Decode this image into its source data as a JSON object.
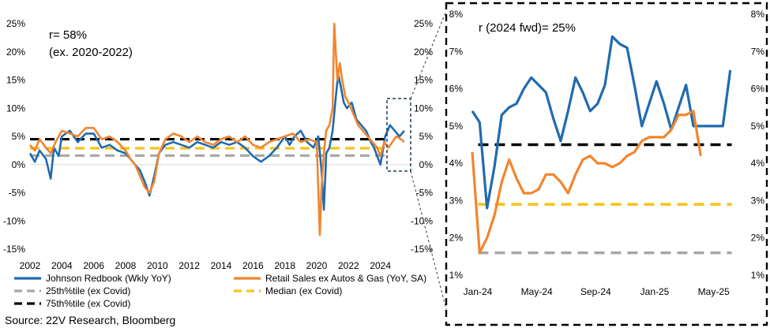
{
  "source": "Source: 22V Research, Bloomberg",
  "colors": {
    "redbook": "#1f6bb0",
    "retail": "#f2852e",
    "p25": "#a6a6a6",
    "median": "#f7c21b",
    "p75": "#000000"
  },
  "chart_data": [
    {
      "type": "line",
      "correlation_label": "r=   58%",
      "correlation_note": "(ex. 2020-2022)",
      "xlim": [
        2002,
        2025.9
      ],
      "x_ticks": [
        "2002",
        "2004",
        "2006",
        "2008",
        "2010",
        "2012",
        "2014",
        "2016",
        "2018",
        "2020",
        "2022",
        "2024"
      ],
      "ylim": [
        -15,
        25
      ],
      "y_ticks_left": [
        "25%",
        "20%",
        "15%",
        "10%",
        "5%",
        "0%",
        "-5%",
        "-10%",
        "-15%"
      ],
      "y_ticks_right": [
        "25%",
        "20%",
        "15%",
        "10%",
        "5%",
        "0%",
        "-5%",
        "-10%",
        "-15%"
      ],
      "series": [
        {
          "name": "Johnson Redbook (Wkly YoY)",
          "style": "solid",
          "x": [
            2002,
            2002.3,
            2002.6,
            2003,
            2003.3,
            2003.5,
            2003.8,
            2004,
            2004.5,
            2005,
            2005.5,
            2006,
            2006.5,
            2007,
            2007.5,
            2008,
            2008.3,
            2008.6,
            2008.9,
            2009.2,
            2009.5,
            2009.8,
            2010.1,
            2010.5,
            2011,
            2011.5,
            2012,
            2012.5,
            2013,
            2013.5,
            2014,
            2014.5,
            2015,
            2015.5,
            2016,
            2016.5,
            2017,
            2017.5,
            2018,
            2018.3,
            2018.6,
            2019,
            2019.4,
            2019.8,
            2020.1,
            2020.3,
            2020.45,
            2020.6,
            2020.8,
            2021.0,
            2021.2,
            2021.35,
            2021.5,
            2021.7,
            2021.9,
            2022.2,
            2022.5,
            2022.8,
            2023.1,
            2023.4,
            2023.6,
            2023.8,
            2024.0,
            2024.3,
            2024.6,
            2024.9,
            2025.2,
            2025.5
          ],
          "y": [
            2,
            0.5,
            2.5,
            1,
            -2.5,
            3,
            1.5,
            5,
            6,
            4,
            5.5,
            5.5,
            3,
            3.5,
            2.5,
            2,
            1,
            0,
            -1,
            -3,
            -5.5,
            -2,
            2,
            3.5,
            4,
            3.5,
            3,
            4,
            3.5,
            3,
            4,
            3.5,
            4,
            3,
            1.5,
            0.5,
            1.5,
            3,
            5,
            3.5,
            5,
            6,
            4,
            3,
            5,
            -1,
            -8,
            2,
            3,
            6,
            12,
            16,
            14,
            11,
            10,
            11,
            8,
            7,
            6,
            4,
            3,
            1.5,
            0,
            5,
            7,
            6,
            5,
            6
          ]
        },
        {
          "name": "Retail Sales ex Autos & Gas (YoY, SA)",
          "style": "solid",
          "x": [
            2002,
            2002.3,
            2002.6,
            2003,
            2003.3,
            2003.6,
            2004,
            2004.5,
            2005,
            2005.5,
            2006,
            2006.5,
            2007,
            2007.5,
            2008,
            2008.3,
            2008.6,
            2008.9,
            2009.2,
            2009.5,
            2009.8,
            2010.1,
            2010.5,
            2011,
            2011.5,
            2012,
            2012.5,
            2013,
            2013.5,
            2014,
            2014.5,
            2015,
            2015.5,
            2016,
            2016.5,
            2017,
            2017.5,
            2018,
            2018.5,
            2019,
            2019.5,
            2020.0,
            2020.2,
            2020.3,
            2020.45,
            2020.6,
            2020.8,
            2021.0,
            2021.1,
            2021.2,
            2021.3,
            2021.45,
            2021.6,
            2021.8,
            2022.0,
            2022.3,
            2022.6,
            2022.9,
            2023.2,
            2023.5,
            2023.8,
            2024.0,
            2024.25,
            2024.5,
            2024.75,
            2025.0,
            2025.3,
            2025.5
          ],
          "y": [
            3.5,
            2.5,
            4.5,
            3,
            2,
            4,
            6,
            5.5,
            5,
            6.5,
            6.5,
            4.5,
            5,
            4,
            2.5,
            1,
            0,
            -2,
            -4,
            -5,
            -3,
            2,
            4.5,
            5.5,
            5,
            4,
            5,
            4,
            3.5,
            4.5,
            5,
            4,
            5,
            3.5,
            3,
            4,
            4.5,
            5,
            5.5,
            4,
            4.5,
            4,
            -12.5,
            -4,
            2,
            6,
            7,
            10,
            25,
            20,
            15,
            18,
            15,
            12,
            11,
            9,
            7,
            6,
            5,
            4,
            3,
            1.5,
            4,
            3,
            4,
            5,
            4.5,
            4
          ]
        },
        {
          "name": "25th%tile (ex Covid)",
          "style": "dashed",
          "level": 1.6
        },
        {
          "name": "Median (ex Covid)",
          "style": "dashed",
          "level": 2.9
        },
        {
          "name": "75th%tile (ex Covid)",
          "style": "dashed",
          "level": 4.5
        }
      ]
    },
    {
      "type": "line",
      "correlation_label": "r (2024 fwd)= 25%",
      "ylim": [
        1,
        8
      ],
      "y_ticks_left": [
        "8%",
        "7%",
        "6%",
        "5%",
        "4%",
        "3%",
        "2%",
        "1%"
      ],
      "y_ticks_right": [
        "8%",
        "7%",
        "6%",
        "5%",
        "4%",
        "3%",
        "2%",
        "1%"
      ],
      "x_ticks": [
        "Jan-24",
        "May-24",
        "Sep-24",
        "Jan-25",
        "May-25"
      ],
      "series": [
        {
          "name": "Johnson Redbook (Wkly YoY)",
          "style": "solid",
          "x": [
            0,
            0.5,
            1,
            1.5,
            2,
            2.5,
            3,
            3.5,
            4,
            4.5,
            5,
            5.5,
            6,
            6.5,
            7,
            7.5,
            8,
            8.5,
            9,
            9.5,
            10,
            10.5,
            11,
            11.5,
            12,
            12.5,
            13,
            13.5,
            14,
            14.5,
            15,
            15.5,
            16,
            16.5,
            17,
            17.5
          ],
          "y": [
            5.4,
            5.1,
            2.8,
            3.9,
            5.3,
            5.5,
            5.6,
            6.0,
            6.3,
            6.1,
            5.9,
            5.2,
            4.6,
            5.4,
            6.3,
            5.9,
            5.4,
            5.6,
            6.1,
            7.4,
            7.2,
            7.1,
            6.1,
            5.0,
            5.6,
            6.2,
            5.6,
            4.9,
            5.5,
            6.1,
            5.0,
            5.0,
            5.0,
            5.0,
            5.0,
            6.5
          ]
        },
        {
          "name": "Retail Sales ex Autos & Gas (YoY, SA)",
          "style": "solid",
          "x": [
            0,
            0.5,
            1,
            1.5,
            2,
            2.5,
            3,
            3.5,
            4,
            4.5,
            5,
            5.5,
            6,
            6.5,
            7,
            7.5,
            8,
            8.5,
            9,
            9.5,
            10,
            10.5,
            11,
            11.5,
            12,
            12.5,
            13,
            13.5,
            14,
            14.5,
            15,
            15.5
          ],
          "y": [
            4.3,
            1.6,
            2.0,
            2.6,
            3.5,
            4.1,
            3.6,
            3.2,
            3.2,
            3.3,
            3.7,
            3.7,
            3.5,
            3.2,
            3.7,
            4.1,
            4.2,
            4.0,
            4.0,
            3.9,
            4.0,
            4.2,
            4.3,
            4.6,
            4.7,
            4.7,
            4.7,
            4.9,
            5.3,
            5.3,
            5.4,
            4.2
          ]
        },
        {
          "name": "25th%tile (ex Covid)",
          "style": "dashed",
          "level": 1.6
        },
        {
          "name": "Median (ex Covid)",
          "style": "dashed",
          "level": 2.9
        },
        {
          "name": "75th%tile (ex Covid)",
          "style": "dashed",
          "level": 4.5
        }
      ]
    }
  ]
}
